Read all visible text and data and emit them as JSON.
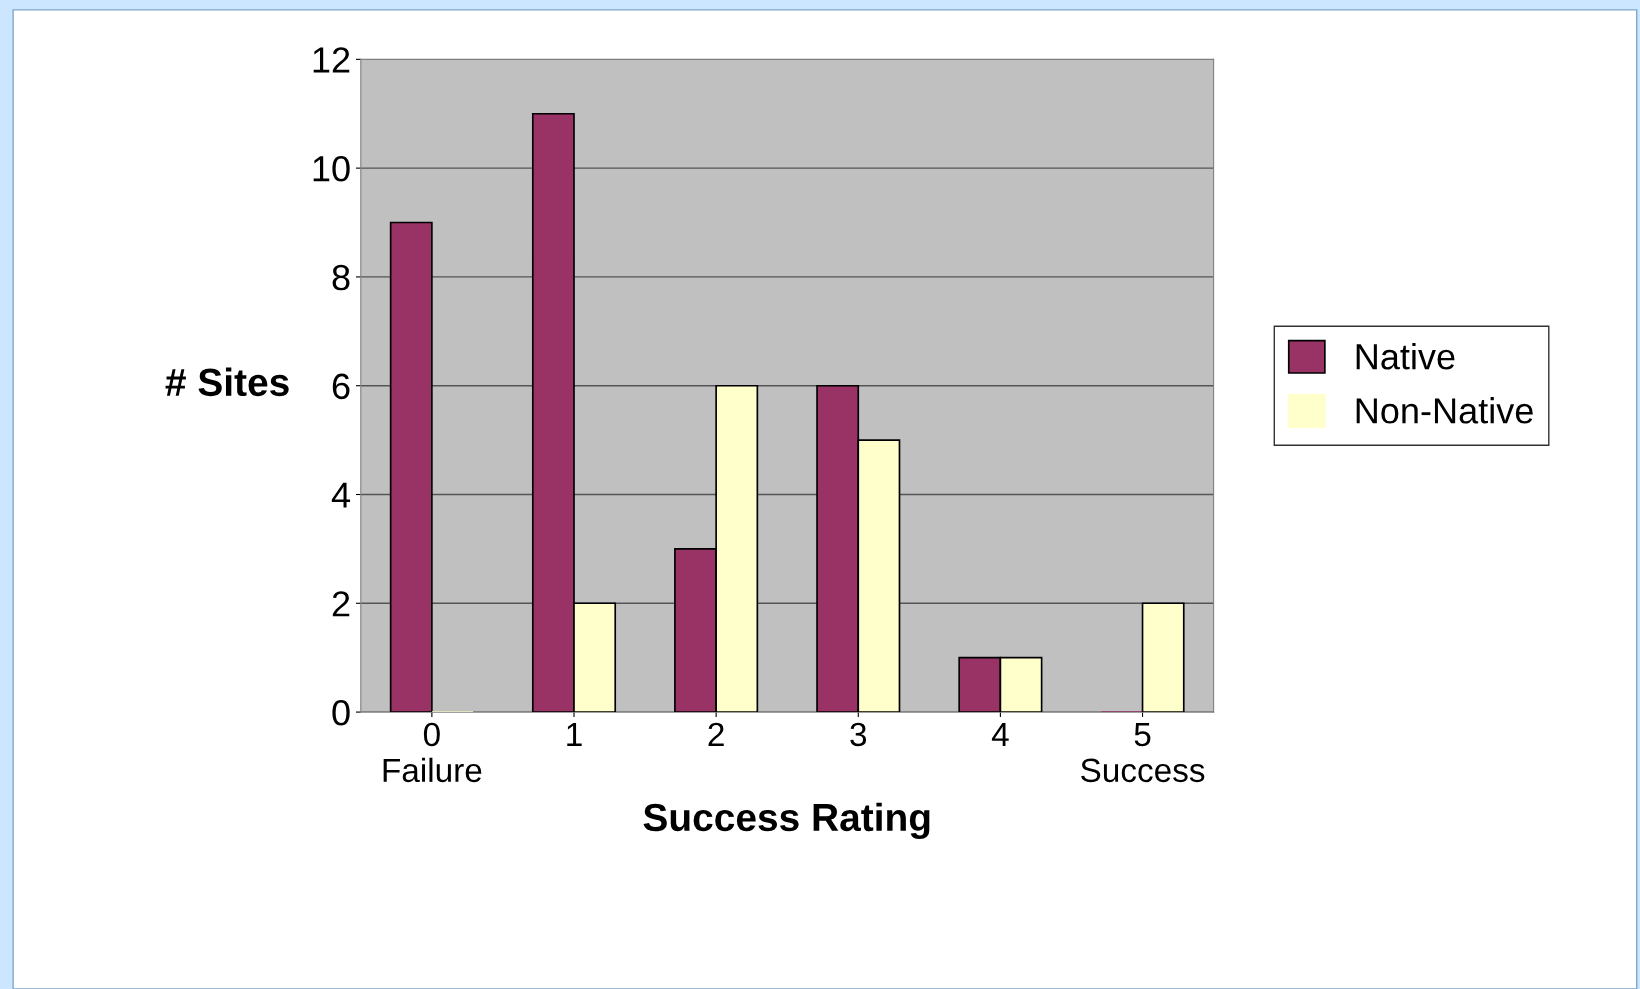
{
  "chart_data": {
    "type": "bar",
    "xlabel": "Success Rating",
    "ylabel": "# Sites",
    "categories": [
      "0\nFailure",
      "1",
      "2",
      "3",
      "4",
      "5\nSuccess"
    ],
    "series": [
      {
        "name": "Native",
        "color": "#993366",
        "values": [
          9,
          11,
          3,
          6,
          1,
          0
        ]
      },
      {
        "name": "Non-Native",
        "color": "#ffffcc",
        "values": [
          0,
          2,
          6,
          5,
          1,
          2
        ]
      }
    ],
    "ylim": [
      0,
      12
    ],
    "yticks": [
      0,
      2,
      4,
      6,
      8,
      10,
      12
    ],
    "grid": "y",
    "legend": "right"
  }
}
